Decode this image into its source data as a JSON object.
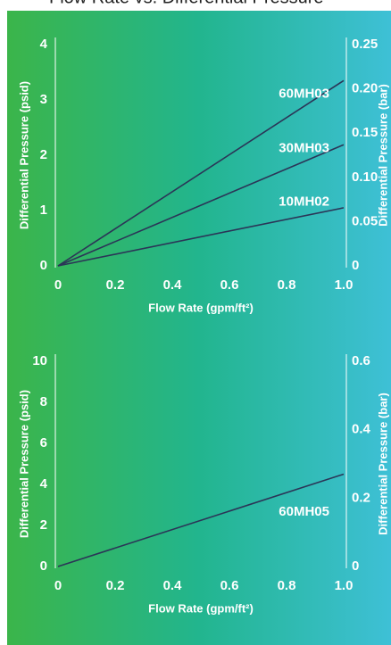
{
  "header": {
    "title": "Flow Rate vs. Differential Pressure"
  },
  "chart_data": [
    {
      "type": "line",
      "x_label": "Flow Rate (gpm/ft²)",
      "y_label": "Differential Pressure (psid)",
      "y2_label": "Differential Pressure (bar)",
      "x": [
        0,
        1
      ],
      "xlim": [
        0,
        1
      ],
      "xticks": [
        0,
        0.2,
        0.4,
        0.6,
        0.8,
        {
          "value": 1,
          "label": "1.0"
        }
      ],
      "ylim": [
        0,
        4
      ],
      "yticks": [
        0,
        1,
        2,
        3,
        4
      ],
      "y2lim": [
        0,
        0.25
      ],
      "y2ticks": [
        0,
        0.05,
        {
          "value": 0.1,
          "label": "0.10"
        },
        0.15,
        {
          "value": 0.2,
          "label": "0.20"
        },
        0.25
      ],
      "series": [
        {
          "name": "60MH03",
          "color": "#2b3557",
          "values": [
            0,
            3.35
          ]
        },
        {
          "name": "30MH03",
          "color": "#2b3557",
          "values": [
            0,
            2.19
          ]
        },
        {
          "name": "10MH02",
          "color": "#2b3557",
          "values": [
            0,
            1.05
          ]
        }
      ]
    },
    {
      "type": "line",
      "x_label": "Flow Rate (gpm/ft²)",
      "y_label": "Differential Pressure (psid)",
      "y2_label": "Differential Pressure (bar)",
      "x": [
        0,
        1
      ],
      "xlim": [
        0,
        1
      ],
      "xticks": [
        0,
        0.2,
        0.4,
        0.6,
        0.8,
        {
          "value": 1,
          "label": "1.0"
        }
      ],
      "ylim": [
        0,
        10
      ],
      "yticks": [
        0,
        2,
        4,
        6,
        8,
        10
      ],
      "y2lim": [
        0,
        0.6
      ],
      "y2ticks": [
        0,
        0.2,
        0.4,
        0.6
      ],
      "series": [
        {
          "name": "60MH05",
          "color": "#2b3557",
          "values": [
            0,
            4.5
          ]
        }
      ]
    }
  ]
}
